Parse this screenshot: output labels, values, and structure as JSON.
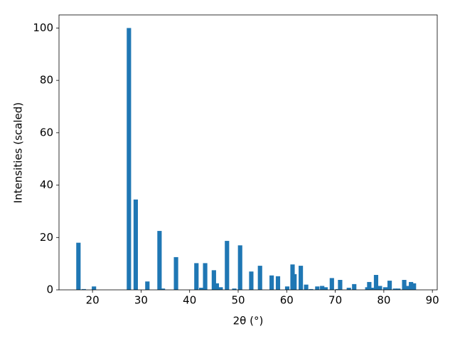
{
  "chart_data": {
    "type": "bar",
    "x_label": "2θ (°)",
    "y_label": "Intensities (scaled)",
    "color": "#1f77b4",
    "x": [
      17.1,
      18.2,
      20.3,
      27.5,
      28.9,
      31.3,
      33.8,
      34.5,
      37.2,
      41.4,
      42.4,
      43.2,
      45.0,
      45.6,
      46.4,
      47.7,
      49.2,
      50.4,
      52.7,
      54.5,
      56.9,
      58.2,
      60.1,
      61.2,
      61.6,
      62.9,
      64.0,
      65.0,
      66.3,
      67.3,
      68.0,
      69.3,
      70.5,
      71.0,
      72.8,
      73.9,
      76.6,
      77.0,
      77.5,
      78.4,
      79.2,
      80.3,
      81.2,
      82.3,
      83.0,
      84.2,
      84.8,
      85.6,
      86.2
    ],
    "values": [
      18,
      0.3,
      1.3,
      100,
      34.5,
      3.2,
      22.5,
      0.5,
      12.5,
      10.2,
      0.8,
      10.2,
      7.5,
      2.5,
      1,
      18.7,
      0.5,
      17,
      7,
      9.2,
      5.5,
      5.2,
      1.3,
      9.7,
      6,
      9.2,
      2,
      0.3,
      1.3,
      1.5,
      1,
      4.5,
      0.3,
      3.8,
      0.8,
      2.2,
      1,
      3,
      0.8,
      5.7,
      1.5,
      1,
      3.5,
      0.5,
      0.5,
      3.8,
      1.5,
      3,
      2.5
    ],
    "xlim": [
      13.1,
      91.0
    ],
    "ylim": [
      0,
      105
    ],
    "xticks": [
      20,
      30,
      40,
      50,
      60,
      70,
      80,
      90
    ],
    "yticks": [
      0,
      20,
      40,
      60,
      80,
      100
    ]
  }
}
